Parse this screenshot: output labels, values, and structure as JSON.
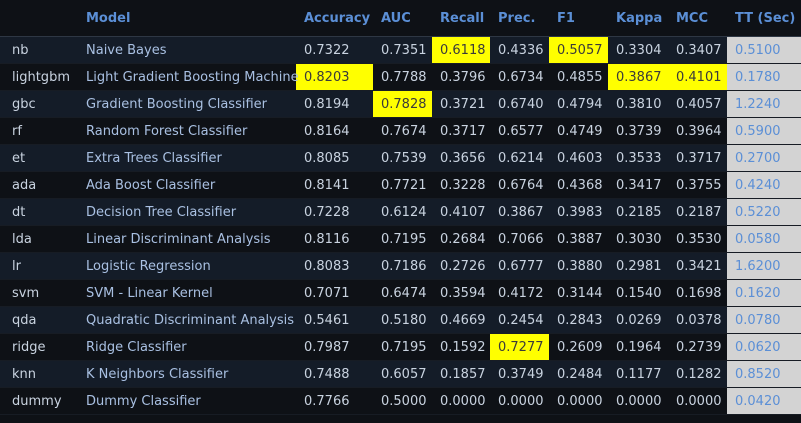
{
  "table": {
    "columns": [
      "Model",
      "Accuracy",
      "AUC",
      "Recall",
      "Prec.",
      "F1",
      "Kappa",
      "MCC",
      "TT (Sec)"
    ],
    "highlight_color": "#ffff00",
    "tt_column_bg": "#d3d3d3",
    "rows": [
      {
        "id": "nb",
        "model": "Naive Bayes",
        "accuracy": "0.7322",
        "auc": "0.7351",
        "recall": "0.6118",
        "prec": "0.4336",
        "f1": "0.5057",
        "kappa": "0.3304",
        "mcc": "0.3407",
        "tt": "0.5100",
        "highlights": [
          "recall",
          "f1"
        ]
      },
      {
        "id": "lightgbm",
        "model": "Light Gradient Boosting Machine",
        "accuracy": "0.8203",
        "auc": "0.7788",
        "recall": "0.3796",
        "prec": "0.6734",
        "f1": "0.4855",
        "kappa": "0.3867",
        "mcc": "0.4101",
        "tt": "0.1780",
        "highlights": [
          "accuracy",
          "kappa",
          "mcc"
        ]
      },
      {
        "id": "gbc",
        "model": "Gradient Boosting Classifier",
        "accuracy": "0.8194",
        "auc": "0.7828",
        "recall": "0.3721",
        "prec": "0.6740",
        "f1": "0.4794",
        "kappa": "0.3810",
        "mcc": "0.4057",
        "tt": "1.2240",
        "highlights": [
          "auc"
        ]
      },
      {
        "id": "rf",
        "model": "Random Forest Classifier",
        "accuracy": "0.8164",
        "auc": "0.7674",
        "recall": "0.3717",
        "prec": "0.6577",
        "f1": "0.4749",
        "kappa": "0.3739",
        "mcc": "0.3964",
        "tt": "0.5900",
        "highlights": []
      },
      {
        "id": "et",
        "model": "Extra Trees Classifier",
        "accuracy": "0.8085",
        "auc": "0.7539",
        "recall": "0.3656",
        "prec": "0.6214",
        "f1": "0.4603",
        "kappa": "0.3533",
        "mcc": "0.3717",
        "tt": "0.2700",
        "highlights": []
      },
      {
        "id": "ada",
        "model": "Ada Boost Classifier",
        "accuracy": "0.8141",
        "auc": "0.7721",
        "recall": "0.3228",
        "prec": "0.6764",
        "f1": "0.4368",
        "kappa": "0.3417",
        "mcc": "0.3755",
        "tt": "0.4240",
        "highlights": []
      },
      {
        "id": "dt",
        "model": "Decision Tree Classifier",
        "accuracy": "0.7228",
        "auc": "0.6124",
        "recall": "0.4107",
        "prec": "0.3867",
        "f1": "0.3983",
        "kappa": "0.2185",
        "mcc": "0.2187",
        "tt": "0.5220",
        "highlights": []
      },
      {
        "id": "lda",
        "model": "Linear Discriminant Analysis",
        "accuracy": "0.8116",
        "auc": "0.7195",
        "recall": "0.2684",
        "prec": "0.7066",
        "f1": "0.3887",
        "kappa": "0.3030",
        "mcc": "0.3530",
        "tt": "0.0580",
        "highlights": []
      },
      {
        "id": "lr",
        "model": "Logistic Regression",
        "accuracy": "0.8083",
        "auc": "0.7186",
        "recall": "0.2726",
        "prec": "0.6777",
        "f1": "0.3880",
        "kappa": "0.2981",
        "mcc": "0.3421",
        "tt": "1.6200",
        "highlights": []
      },
      {
        "id": "svm",
        "model": "SVM - Linear Kernel",
        "accuracy": "0.7071",
        "auc": "0.6474",
        "recall": "0.3594",
        "prec": "0.4172",
        "f1": "0.3144",
        "kappa": "0.1540",
        "mcc": "0.1698",
        "tt": "0.1620",
        "highlights": []
      },
      {
        "id": "qda",
        "model": "Quadratic Discriminant Analysis",
        "accuracy": "0.5461",
        "auc": "0.5180",
        "recall": "0.4669",
        "prec": "0.2454",
        "f1": "0.2843",
        "kappa": "0.0269",
        "mcc": "0.0378",
        "tt": "0.0780",
        "highlights": []
      },
      {
        "id": "ridge",
        "model": "Ridge Classifier",
        "accuracy": "0.7987",
        "auc": "0.7195",
        "recall": "0.1592",
        "prec": "0.7277",
        "f1": "0.2609",
        "kappa": "0.1964",
        "mcc": "0.2739",
        "tt": "0.0620",
        "highlights": [
          "prec"
        ]
      },
      {
        "id": "knn",
        "model": "K Neighbors Classifier",
        "accuracy": "0.7488",
        "auc": "0.6057",
        "recall": "0.1857",
        "prec": "0.3749",
        "f1": "0.2484",
        "kappa": "0.1177",
        "mcc": "0.1282",
        "tt": "0.8520",
        "highlights": []
      },
      {
        "id": "dummy",
        "model": "Dummy Classifier",
        "accuracy": "0.7766",
        "auc": "0.5000",
        "recall": "0.0000",
        "prec": "0.0000",
        "f1": "0.0000",
        "kappa": "0.0000",
        "mcc": "0.0000",
        "tt": "0.0420",
        "highlights": []
      }
    ]
  }
}
